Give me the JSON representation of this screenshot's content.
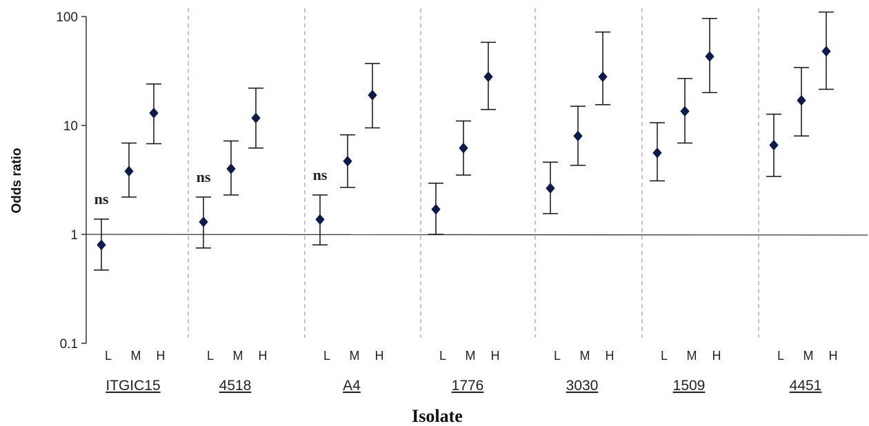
{
  "chart_data": {
    "type": "scatter",
    "subtype": "odds-ratio-with-error-bars",
    "title": "",
    "xlabel": "Isolate",
    "ylabel": "Odds ratio",
    "yscale": "log",
    "ylim": [
      0.1,
      100
    ],
    "yticks": [
      "0.1",
      "1",
      "10",
      "100"
    ],
    "reference_line_y": 1,
    "levels": [
      "L",
      "M",
      "H"
    ],
    "marker_color": "#0d1b4c",
    "groups": [
      {
        "isolate": "ITGIC15",
        "ns_label": "ns",
        "points": [
          {
            "level": "L",
            "or": 0.8,
            "low": 0.47,
            "high": 1.38
          },
          {
            "level": "M",
            "or": 3.8,
            "low": 2.2,
            "high": 6.9
          },
          {
            "level": "H",
            "or": 13,
            "low": 6.8,
            "high": 24
          }
        ]
      },
      {
        "isolate": "4518",
        "ns_label": "ns",
        "points": [
          {
            "level": "L",
            "or": 1.3,
            "low": 0.75,
            "high": 2.2
          },
          {
            "level": "M",
            "or": 4.0,
            "low": 2.3,
            "high": 7.2
          },
          {
            "level": "H",
            "or": 11.7,
            "low": 6.2,
            "high": 22
          }
        ]
      },
      {
        "isolate": "A4",
        "ns_label": "ns",
        "points": [
          {
            "level": "L",
            "or": 1.37,
            "low": 0.8,
            "high": 2.3
          },
          {
            "level": "M",
            "or": 4.7,
            "low": 2.7,
            "high": 8.2
          },
          {
            "level": "H",
            "or": 19,
            "low": 9.5,
            "high": 37
          }
        ]
      },
      {
        "isolate": "1776",
        "ns_label": "",
        "points": [
          {
            "level": "L",
            "or": 1.7,
            "low": 1.0,
            "high": 2.95
          },
          {
            "level": "M",
            "or": 6.2,
            "low": 3.5,
            "high": 11
          },
          {
            "level": "H",
            "or": 28,
            "low": 14,
            "high": 58
          }
        ]
      },
      {
        "isolate": "3030",
        "ns_label": "",
        "points": [
          {
            "level": "L",
            "or": 2.65,
            "low": 1.55,
            "high": 4.6
          },
          {
            "level": "M",
            "or": 8.0,
            "low": 4.3,
            "high": 15
          },
          {
            "level": "H",
            "or": 28,
            "low": 15.5,
            "high": 72
          }
        ]
      },
      {
        "isolate": "1509",
        "ns_label": "",
        "points": [
          {
            "level": "L",
            "or": 5.6,
            "low": 3.1,
            "high": 10.6
          },
          {
            "level": "M",
            "or": 13.5,
            "low": 6.9,
            "high": 27
          },
          {
            "level": "H",
            "or": 43,
            "low": 20,
            "high": 96
          }
        ]
      },
      {
        "isolate": "4451",
        "ns_label": "",
        "points": [
          {
            "level": "L",
            "or": 6.6,
            "low": 3.4,
            "high": 12.7
          },
          {
            "level": "M",
            "or": 17,
            "low": 8.0,
            "high": 34
          },
          {
            "level": "H",
            "or": 48,
            "low": 21.5,
            "high": 110
          }
        ]
      }
    ]
  }
}
